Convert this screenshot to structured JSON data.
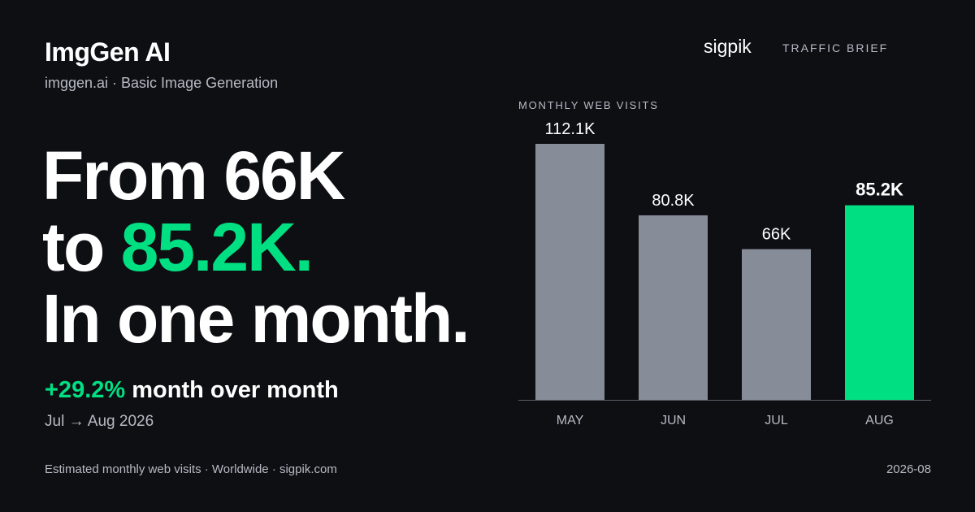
{
  "brand": {
    "title": "ImgGen AI",
    "subtitle": "imggen.ai · Basic Image Generation",
    "logo_text": "sigpik",
    "tag": "TRAFFIC BRIEF"
  },
  "headline": {
    "line1": "From 66K",
    "line2_prefix": "to ",
    "line2_accent": "85.2K.",
    "line3": "In one month."
  },
  "change": {
    "pct": "+29.2%",
    "text": " month over month",
    "period": "Jul → Aug 2026"
  },
  "footer": {
    "left": "Estimated monthly web visits · Worldwide · sigpik.com",
    "right": "2026-08"
  },
  "colors": {
    "accent": "#00e083",
    "bar": "#878c99",
    "background": "#0d0f13"
  },
  "chart_data": {
    "type": "bar",
    "title": "MONTHLY WEB VISITS",
    "categories": [
      "MAY",
      "JUN",
      "JUL",
      "AUG"
    ],
    "values": [
      112.1,
      80.8,
      66,
      85.2
    ],
    "value_labels": [
      "112.1K",
      "80.8K",
      "66K",
      "85.2K"
    ],
    "unit": "K",
    "highlight_index": 3,
    "ylim": [
      0,
      120
    ],
    "grid": false,
    "legend": "none"
  }
}
